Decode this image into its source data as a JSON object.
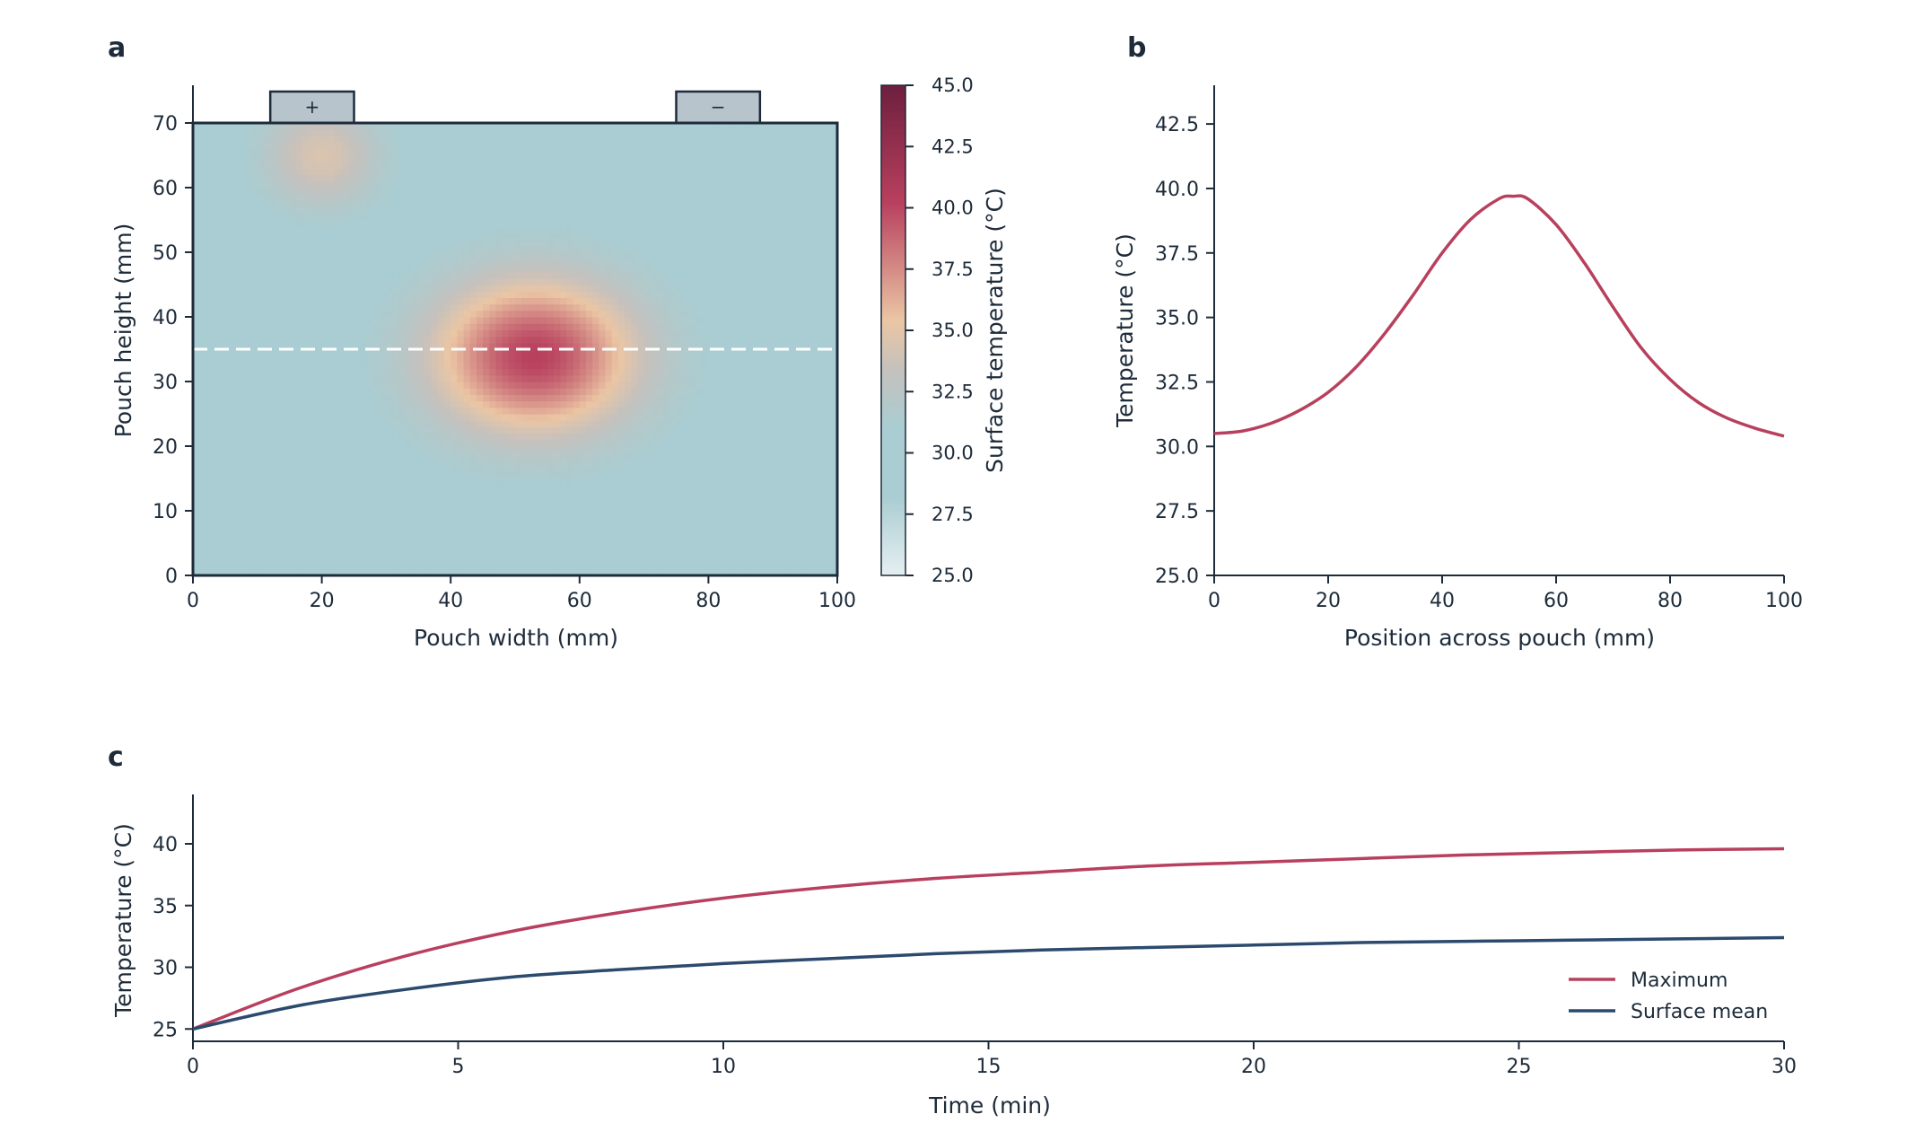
{
  "panel_labels": {
    "a": "a",
    "b": "b",
    "c": "c"
  },
  "colors": {
    "axis": "#1d2b3a",
    "maximum": "#b8405e",
    "mean": "#2c4a6e",
    "tab_fill": "#b8c4cc",
    "colormap": [
      "#e6eff1",
      "#a9cdd2",
      "#a9cdd2",
      "#c5c1bd",
      "#ebc6a4",
      "#b8405e",
      "#6e1f3e"
    ]
  },
  "chart_data": [
    {
      "id": "a",
      "type": "heatmap",
      "xlabel": "Pouch width (mm)",
      "ylabel": "Pouch height (mm)",
      "xlim": [
        0,
        100
      ],
      "ylim": [
        0,
        70
      ],
      "xticks": [
        "0",
        "20",
        "40",
        "60",
        "80",
        "100"
      ],
      "yticks": [
        "0",
        "10",
        "20",
        "30",
        "40",
        "50",
        "60",
        "70"
      ],
      "value_range": [
        25,
        45
      ],
      "ambient": 30.5,
      "hotspot": {
        "x": 53,
        "y": 34,
        "peak": 40.2
      },
      "tab_warm": {
        "x": 20,
        "y": 65,
        "peak": 34.5
      },
      "tabs": [
        {
          "label": "+",
          "x_start": 12,
          "x_end": 25
        },
        {
          "label": "−",
          "x_start": 75,
          "x_end": 88
        }
      ],
      "cross_section_y": 35,
      "colorbar": {
        "label": "Surface temperature (°C)",
        "range": [
          25,
          45
        ],
        "ticks": [
          "25.0",
          "27.5",
          "30.0",
          "32.5",
          "35.0",
          "37.5",
          "40.0",
          "42.5",
          "45.0"
        ]
      }
    },
    {
      "id": "b",
      "type": "line",
      "xlabel": "Position across pouch (mm)",
      "ylabel": "Temperature (°C)",
      "xlim": [
        0,
        100
      ],
      "ylim": [
        25,
        44
      ],
      "xticks": [
        "0",
        "20",
        "40",
        "60",
        "80",
        "100"
      ],
      "yticks": [
        "25.0",
        "27.5",
        "30.0",
        "32.5",
        "35.0",
        "37.5",
        "40.0",
        "42.5"
      ],
      "series": [
        {
          "x": [
            0,
            5,
            10,
            15,
            20,
            25,
            30,
            35,
            40,
            45,
            50,
            52.5,
            55,
            60,
            65,
            70,
            75,
            80,
            85,
            90,
            95,
            100
          ],
          "y": [
            30.5,
            30.6,
            30.9,
            31.4,
            32.1,
            33.1,
            34.4,
            35.9,
            37.5,
            38.8,
            39.6,
            39.7,
            39.6,
            38.6,
            37.1,
            35.4,
            33.8,
            32.6,
            31.7,
            31.1,
            30.7,
            30.4
          ]
        }
      ]
    },
    {
      "id": "c",
      "type": "line",
      "xlabel": "Time (min)",
      "ylabel": "Temperature (°C)",
      "xlim": [
        0,
        30
      ],
      "ylim": [
        24,
        44
      ],
      "xticks": [
        "0",
        "5",
        "10",
        "15",
        "20",
        "25",
        "30"
      ],
      "yticks": [
        "25",
        "30",
        "35",
        "40"
      ],
      "legend_position": "lower-right",
      "series": [
        {
          "name": "Maximum",
          "x": [
            0,
            2,
            4,
            6,
            8,
            10,
            12,
            14,
            16,
            18,
            20,
            22,
            24,
            26,
            28,
            30
          ],
          "y": [
            25.0,
            28.3,
            30.9,
            32.9,
            34.4,
            35.6,
            36.5,
            37.2,
            37.7,
            38.2,
            38.5,
            38.8,
            39.1,
            39.3,
            39.5,
            39.6
          ]
        },
        {
          "name": "Surface mean",
          "x": [
            0,
            2,
            4,
            6,
            8,
            10,
            12,
            14,
            16,
            18,
            20,
            22,
            24,
            26,
            28,
            30
          ],
          "y": [
            25.0,
            26.9,
            28.2,
            29.2,
            29.8,
            30.3,
            30.7,
            31.1,
            31.4,
            31.6,
            31.8,
            32.0,
            32.1,
            32.2,
            32.3,
            32.4
          ]
        }
      ]
    }
  ]
}
